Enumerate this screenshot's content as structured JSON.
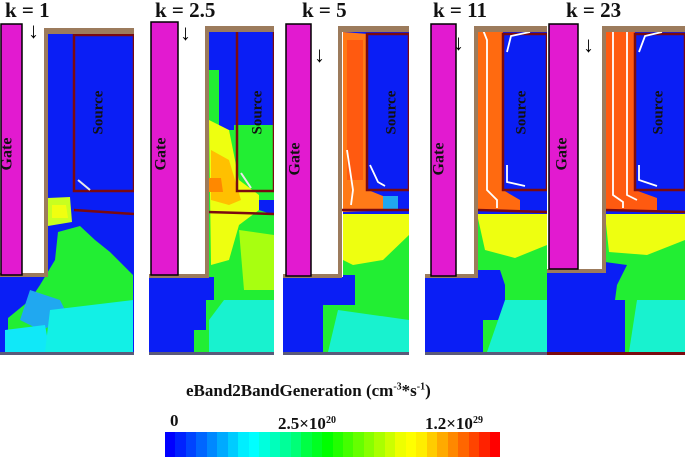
{
  "figure": {
    "panels": [
      {
        "k_label": "k = 1",
        "gate_label": "Gate",
        "source_label": "Source",
        "arrow": "↓",
        "intensity": 1
      },
      {
        "k_label": "k = 2.5",
        "gate_label": "Gate",
        "source_label": "Source",
        "arrow": "↓",
        "intensity": 2
      },
      {
        "k_label": "k = 5",
        "gate_label": "Gate",
        "source_label": "Source",
        "arrow": "↓",
        "intensity": 3
      },
      {
        "k_label": "k = 11",
        "gate_label": "Gate",
        "source_label": "Source",
        "arrow": "↓",
        "intensity": 4
      },
      {
        "k_label": "k = 23",
        "gate_label": "Gate",
        "source_label": "Source",
        "arrow": "↓",
        "intensity": 5
      }
    ],
    "colorbar": {
      "title_main": "eBand2BandGeneration (cm",
      "title_exp1": "-3",
      "title_mid": "*s",
      "title_exp2": "-1",
      "title_end": ")",
      "ticks": [
        {
          "base": "0",
          "exp": ""
        },
        {
          "base": "2.5×10",
          "exp": "20"
        },
        {
          "base": "1.2×10",
          "exp": "29"
        }
      ],
      "colors": [
        "#0000ff",
        "#0022ff",
        "#0044ff",
        "#0066ff",
        "#0088ff",
        "#00aaff",
        "#00ccff",
        "#00eeff",
        "#00ffff",
        "#00ffdd",
        "#00ffbb",
        "#00ff99",
        "#00ff77",
        "#00ff44",
        "#00ff22",
        "#00ff00",
        "#22ff00",
        "#44ff00",
        "#66ff00",
        "#88ff00",
        "#aaff00",
        "#ccff00",
        "#eeff00",
        "#ffff00",
        "#ffee00",
        "#ffcc00",
        "#ffaa00",
        "#ff8800",
        "#ff6600",
        "#ff4400",
        "#ff2200",
        "#ff0000"
      ]
    },
    "colors": {
      "gate": "#e21ad0",
      "oxide": "#ffffff",
      "spacer": "#9c7b5c",
      "background_blue": "#0a1ef5",
      "source_border": "#7a0a10",
      "text": "#111111"
    }
  }
}
